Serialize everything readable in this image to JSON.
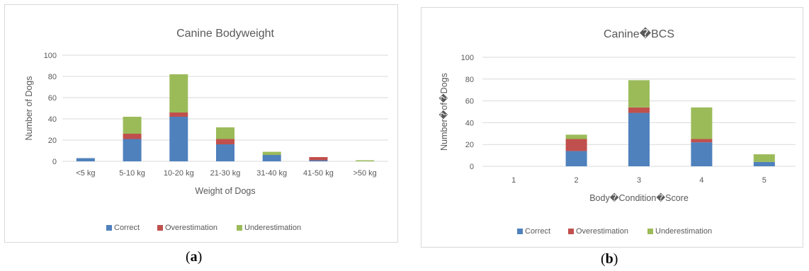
{
  "chart_data": [
    {
      "type": "bar",
      "stacked": true,
      "title": "Canine Bodyweight",
      "xlabel": "Weight of Dogs",
      "ylabel": "Number of Dogs",
      "categories": [
        "<5 kg",
        "5-10 kg",
        "10-20 kg",
        "21-30 kg",
        "31-40 kg",
        "41-50 kg",
        ">50 kg"
      ],
      "series": [
        {
          "name": "Correct",
          "color": "#4f81bd",
          "values": [
            3,
            21,
            42,
            16,
            6,
            1,
            0
          ]
        },
        {
          "name": "Overestimation",
          "color": "#c0504d",
          "values": [
            0,
            5,
            4,
            5,
            0,
            3,
            0
          ]
        },
        {
          "name": "Underestimation",
          "color": "#9bbb59",
          "values": [
            0,
            16,
            36,
            11,
            3,
            0,
            1
          ]
        }
      ],
      "ylim": [
        0,
        100
      ],
      "yticks": [
        0,
        20,
        40,
        60,
        80,
        100
      ],
      "grid": true,
      "legend": "bottom"
    },
    {
      "type": "bar",
      "stacked": true,
      "title": "Canine�BCS",
      "xlabel": "Body�Condition�Score",
      "ylabel": "Number�of�Dogs",
      "categories": [
        "1",
        "2",
        "3",
        "4",
        "5"
      ],
      "series": [
        {
          "name": "Correct",
          "color": "#4f81bd",
          "values": [
            0,
            14,
            49,
            22,
            4
          ]
        },
        {
          "name": "Overestimation",
          "color": "#c0504d",
          "values": [
            0,
            11,
            5,
            3,
            0
          ]
        },
        {
          "name": "Underestimation",
          "color": "#9bbb59",
          "values": [
            0,
            4,
            25,
            29,
            7
          ]
        }
      ],
      "ylim": [
        0,
        100
      ],
      "yticks": [
        0,
        20,
        40,
        60,
        80,
        100
      ],
      "grid": true,
      "legend": "bottom"
    }
  ],
  "panel_labels": [
    "a",
    "b"
  ]
}
